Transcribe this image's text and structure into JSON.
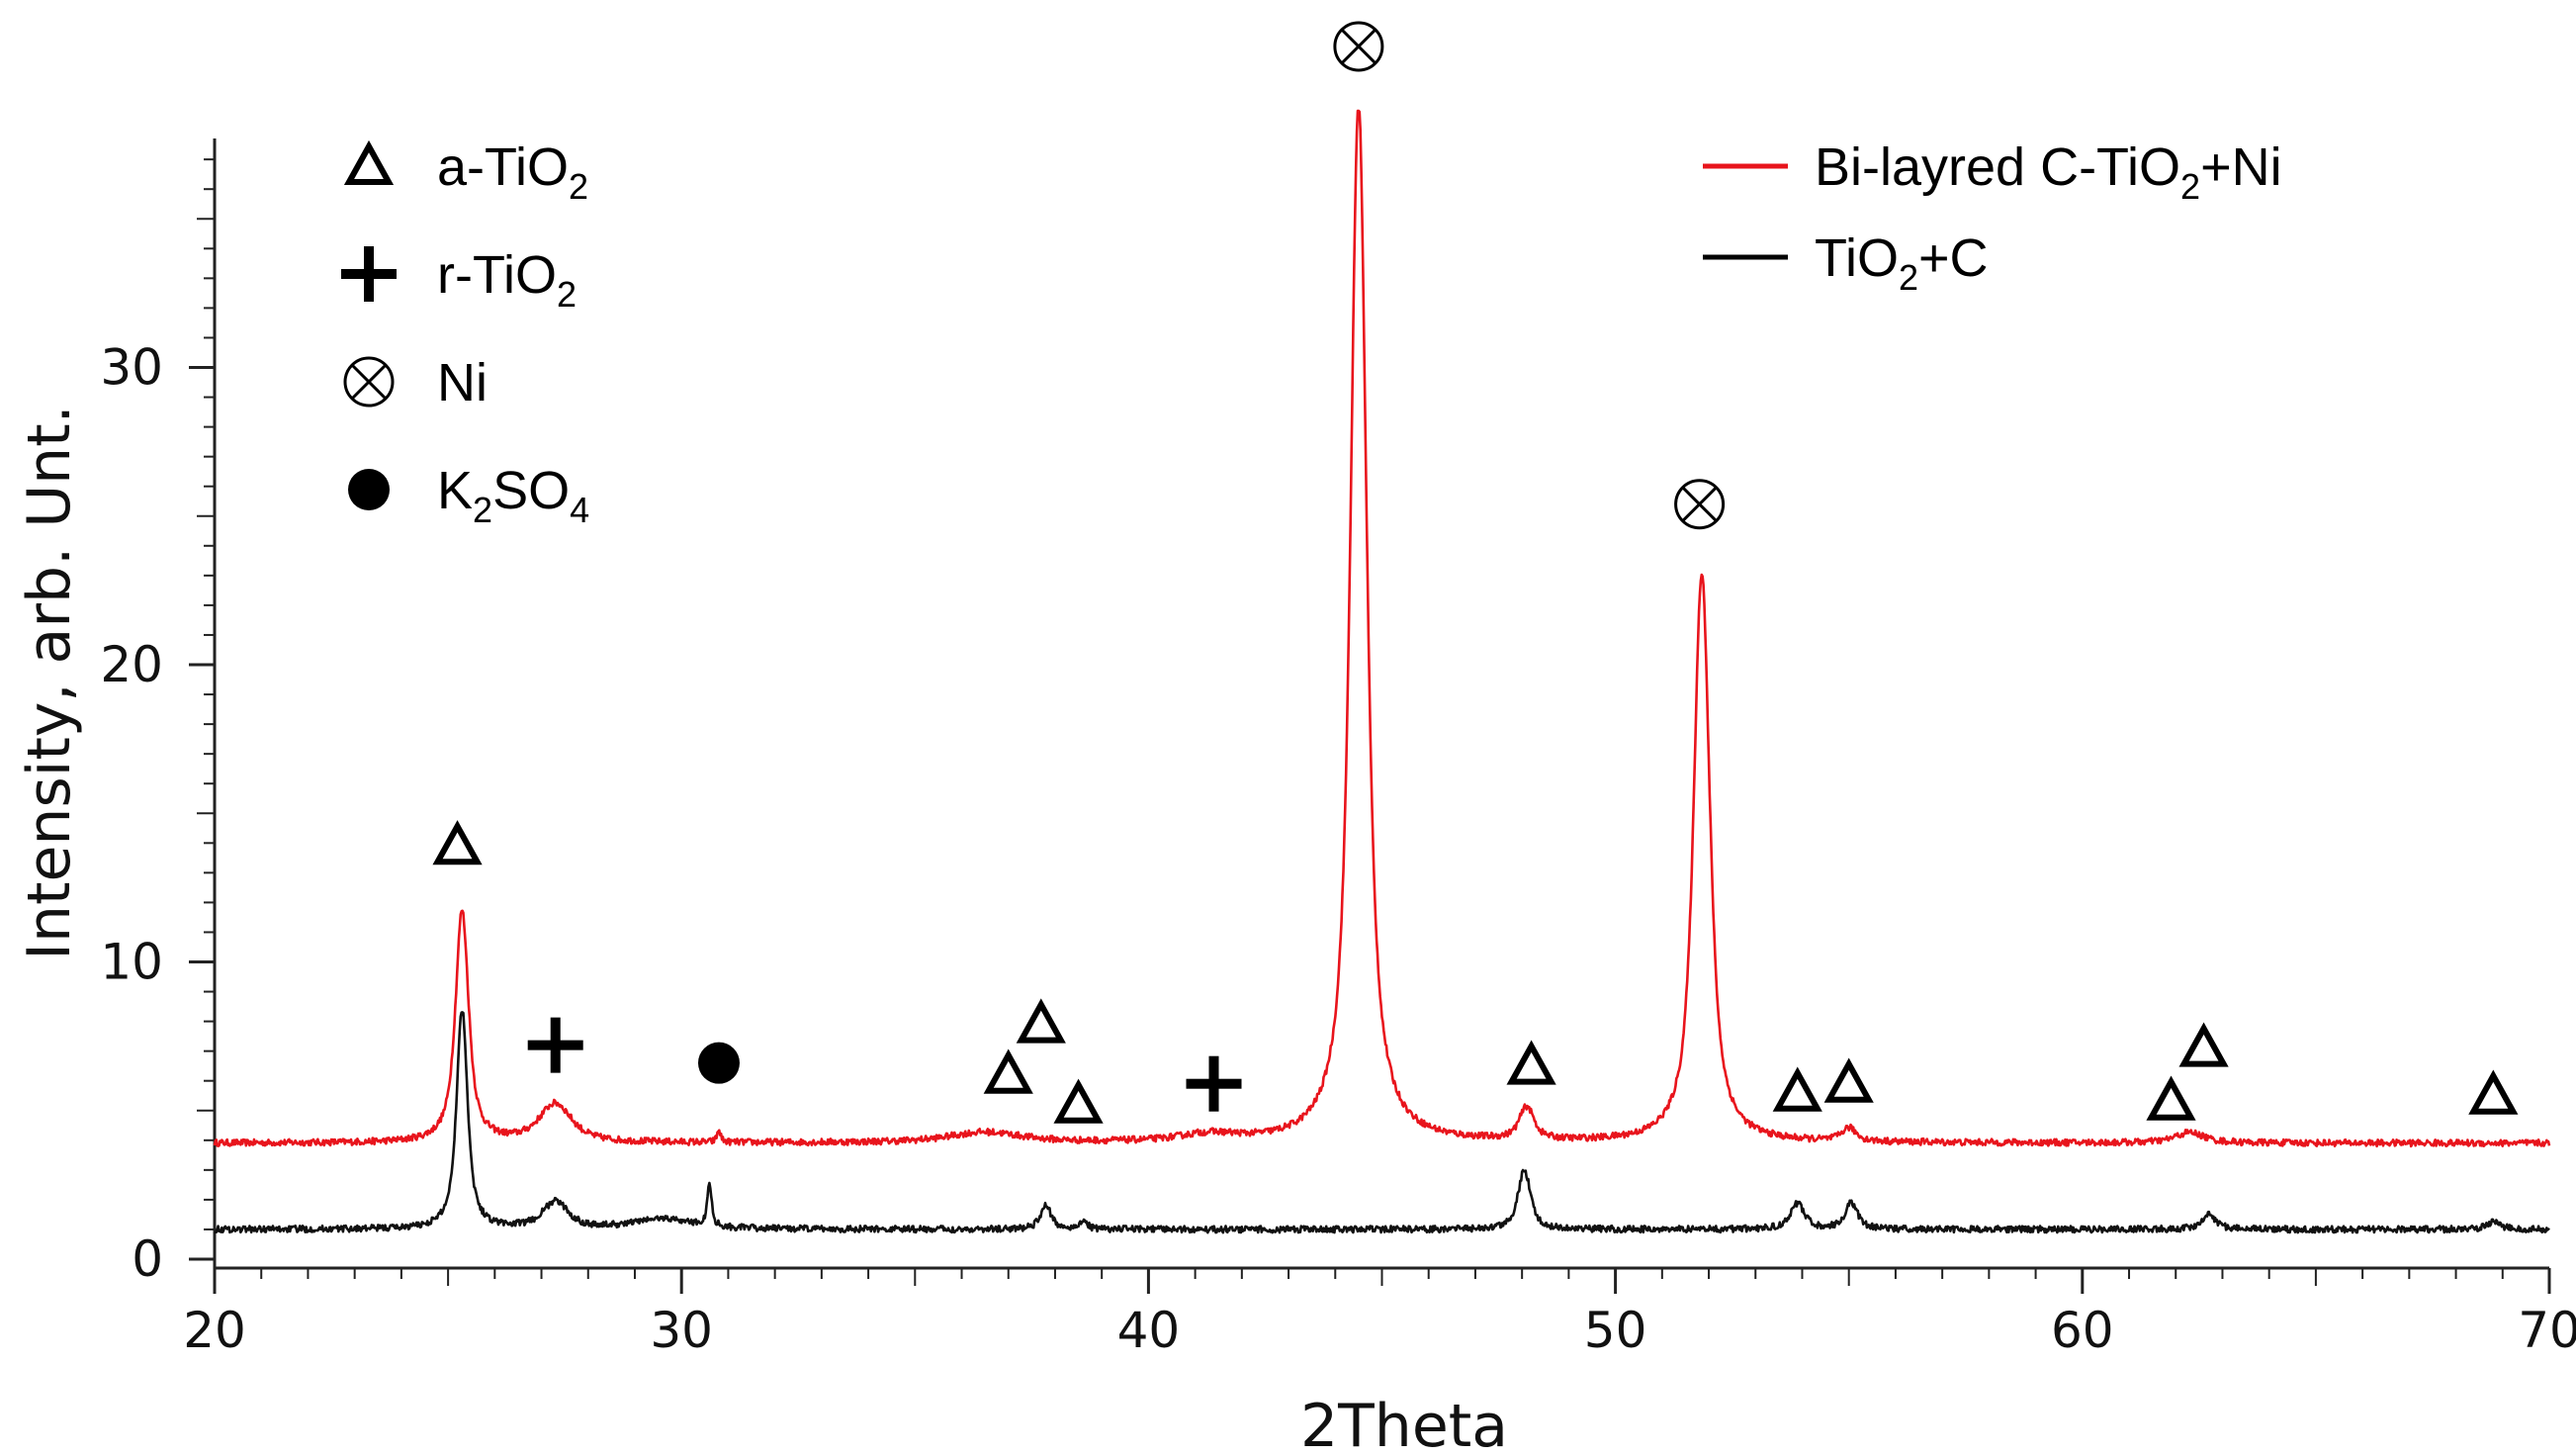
{
  "chart_data": {
    "type": "line",
    "title": "",
    "xlabel": "2Theta",
    "ylabel": "Intensity, arb. Unt.",
    "xlim": [
      20,
      70
    ],
    "ylim": [
      0,
      38
    ],
    "x_ticks": [
      "20",
      "30",
      "40",
      "50",
      "60",
      "70"
    ],
    "y_ticks": [
      "0",
      "10",
      "20",
      "30"
    ],
    "series": [
      {
        "name": "Bi-layred C-TiO2+Ni",
        "legend_parts": [
          "Bi-layred C-TiO",
          "2",
          "+Ni"
        ],
        "color": "#e8141c",
        "baseline": 3.9,
        "peaks": [
          {
            "x": 25.3,
            "height": 7.8,
            "width": 0.18
          },
          {
            "x": 27.3,
            "height": 1.3,
            "width": 0.45
          },
          {
            "x": 30.8,
            "height": 0.4,
            "width": 0.05
          },
          {
            "x": 36.5,
            "height": 0.35,
            "width": 1.0
          },
          {
            "x": 41.3,
            "height": 0.25,
            "width": 0.8
          },
          {
            "x": 44.5,
            "height": 35.0,
            "width": 0.22
          },
          {
            "x": 48.1,
            "height": 1.1,
            "width": 0.2
          },
          {
            "x": 51.85,
            "height": 19.2,
            "width": 0.22
          },
          {
            "x": 55.0,
            "height": 0.45,
            "width": 0.2
          },
          {
            "x": 62.3,
            "height": 0.35,
            "width": 0.4
          }
        ]
      },
      {
        "name": "TiO2+C",
        "legend_parts": [
          "TiO",
          "2",
          "+C"
        ],
        "color": "#111111",
        "baseline": 1.0,
        "peaks": [
          {
            "x": 25.3,
            "height": 7.4,
            "width": 0.15
          },
          {
            "x": 27.3,
            "height": 0.9,
            "width": 0.35
          },
          {
            "x": 29.6,
            "height": 0.35,
            "width": 0.8
          },
          {
            "x": 30.6,
            "height": 1.4,
            "width": 0.06
          },
          {
            "x": 37.8,
            "height": 0.8,
            "width": 0.15
          },
          {
            "x": 38.6,
            "height": 0.3,
            "width": 0.1
          },
          {
            "x": 48.05,
            "height": 2.0,
            "width": 0.17
          },
          {
            "x": 53.9,
            "height": 0.85,
            "width": 0.2
          },
          {
            "x": 55.05,
            "height": 0.9,
            "width": 0.17
          },
          {
            "x": 62.7,
            "height": 0.5,
            "width": 0.2
          },
          {
            "x": 68.8,
            "height": 0.25,
            "width": 0.2
          }
        ]
      }
    ],
    "markers": [
      {
        "type": "triangle",
        "x": 25.2,
        "y": 13.9
      },
      {
        "type": "plus",
        "x": 27.3,
        "y": 7.2
      },
      {
        "type": "dot",
        "x": 30.8,
        "y": 6.6
      },
      {
        "type": "triangle",
        "x": 37.0,
        "y": 6.2
      },
      {
        "type": "triangle",
        "x": 37.7,
        "y": 7.9
      },
      {
        "type": "triangle",
        "x": 38.5,
        "y": 5.2
      },
      {
        "type": "plus",
        "x": 41.4,
        "y": 5.9
      },
      {
        "type": "otimes",
        "x": 44.5,
        "y": 40.8
      },
      {
        "type": "triangle",
        "x": 48.2,
        "y": 6.5
      },
      {
        "type": "otimes",
        "x": 51.8,
        "y": 25.4
      },
      {
        "type": "triangle",
        "x": 53.9,
        "y": 5.6
      },
      {
        "type": "triangle",
        "x": 55.0,
        "y": 5.9
      },
      {
        "type": "triangle",
        "x": 61.9,
        "y": 5.3
      },
      {
        "type": "triangle",
        "x": 62.6,
        "y": 7.1
      },
      {
        "type": "triangle",
        "x": 68.8,
        "y": 5.5
      }
    ],
    "symbol_legend": [
      {
        "symbol": "triangle",
        "parts": [
          "a-TiO",
          "2",
          ""
        ]
      },
      {
        "symbol": "plus",
        "parts": [
          "r-TiO",
          "2",
          ""
        ]
      },
      {
        "symbol": "otimes",
        "parts": [
          "Ni",
          "",
          ""
        ]
      },
      {
        "symbol": "dot",
        "parts": [
          "K",
          "2",
          "SO",
          "4"
        ]
      }
    ]
  }
}
